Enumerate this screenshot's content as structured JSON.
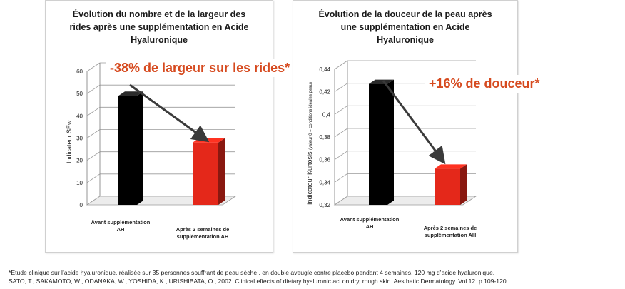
{
  "chart_data": [
    {
      "type": "bar",
      "title": "Évolution du nombre et de la largeur des rides après une supplémentation en Acide Hyaluronique",
      "ylabel": "Indicateur SEw",
      "ylim": [
        0,
        60
      ],
      "yticks": [
        "0",
        "10",
        "20",
        "30",
        "40",
        "50",
        "60"
      ],
      "categories": [
        "Avant supplémentation AH",
        "Après 2 semaines de supplémentation AH"
      ],
      "values": [
        49,
        28
      ],
      "colors": [
        "#000000",
        "#e4281a"
      ],
      "grid": true,
      "annotation": "-38% de largeur sur les rides*"
    },
    {
      "type": "bar",
      "title": "Évolution de la douceur de la peau après une supplémentation en Acide Hyaluronique",
      "ylabel": "Indicateur Kurtosis",
      "ylabel_note": "(valeur 0 = conditions idéales peau)",
      "ylim": [
        0.32,
        0.44
      ],
      "yticks": [
        "0,32",
        "0,34",
        "0,36",
        "0,38",
        "0,4",
        "0,42",
        "0,44"
      ],
      "categories": [
        "Avant supplémentation AH",
        "Après 2 semaines de supplémentation AH"
      ],
      "values": [
        0.427,
        0.352
      ],
      "colors": [
        "#000000",
        "#e4281a"
      ],
      "grid": true,
      "annotation": "+16% de douceur*"
    }
  ],
  "footnote": {
    "line1": "*Etude clinique sur l’acide hyaluronique, réalisée sur 35 personnes  souffrant de peau sèche , en double aveugle contre placebo pendant 4 semaines. 120 mg d’acide hyaluronique.",
    "line2": "SATO,  T.,  SAKAMOTO,  W.,  ODANAKA,  W.,  YOSHIDA,  K.,  URISHIBATA,  O.,  2002.  Clinical effects of dietary hyaluronic aci on dry,  rough skin.  Aesthetic Dermatology.  Vol 12.  p 109-120."
  }
}
